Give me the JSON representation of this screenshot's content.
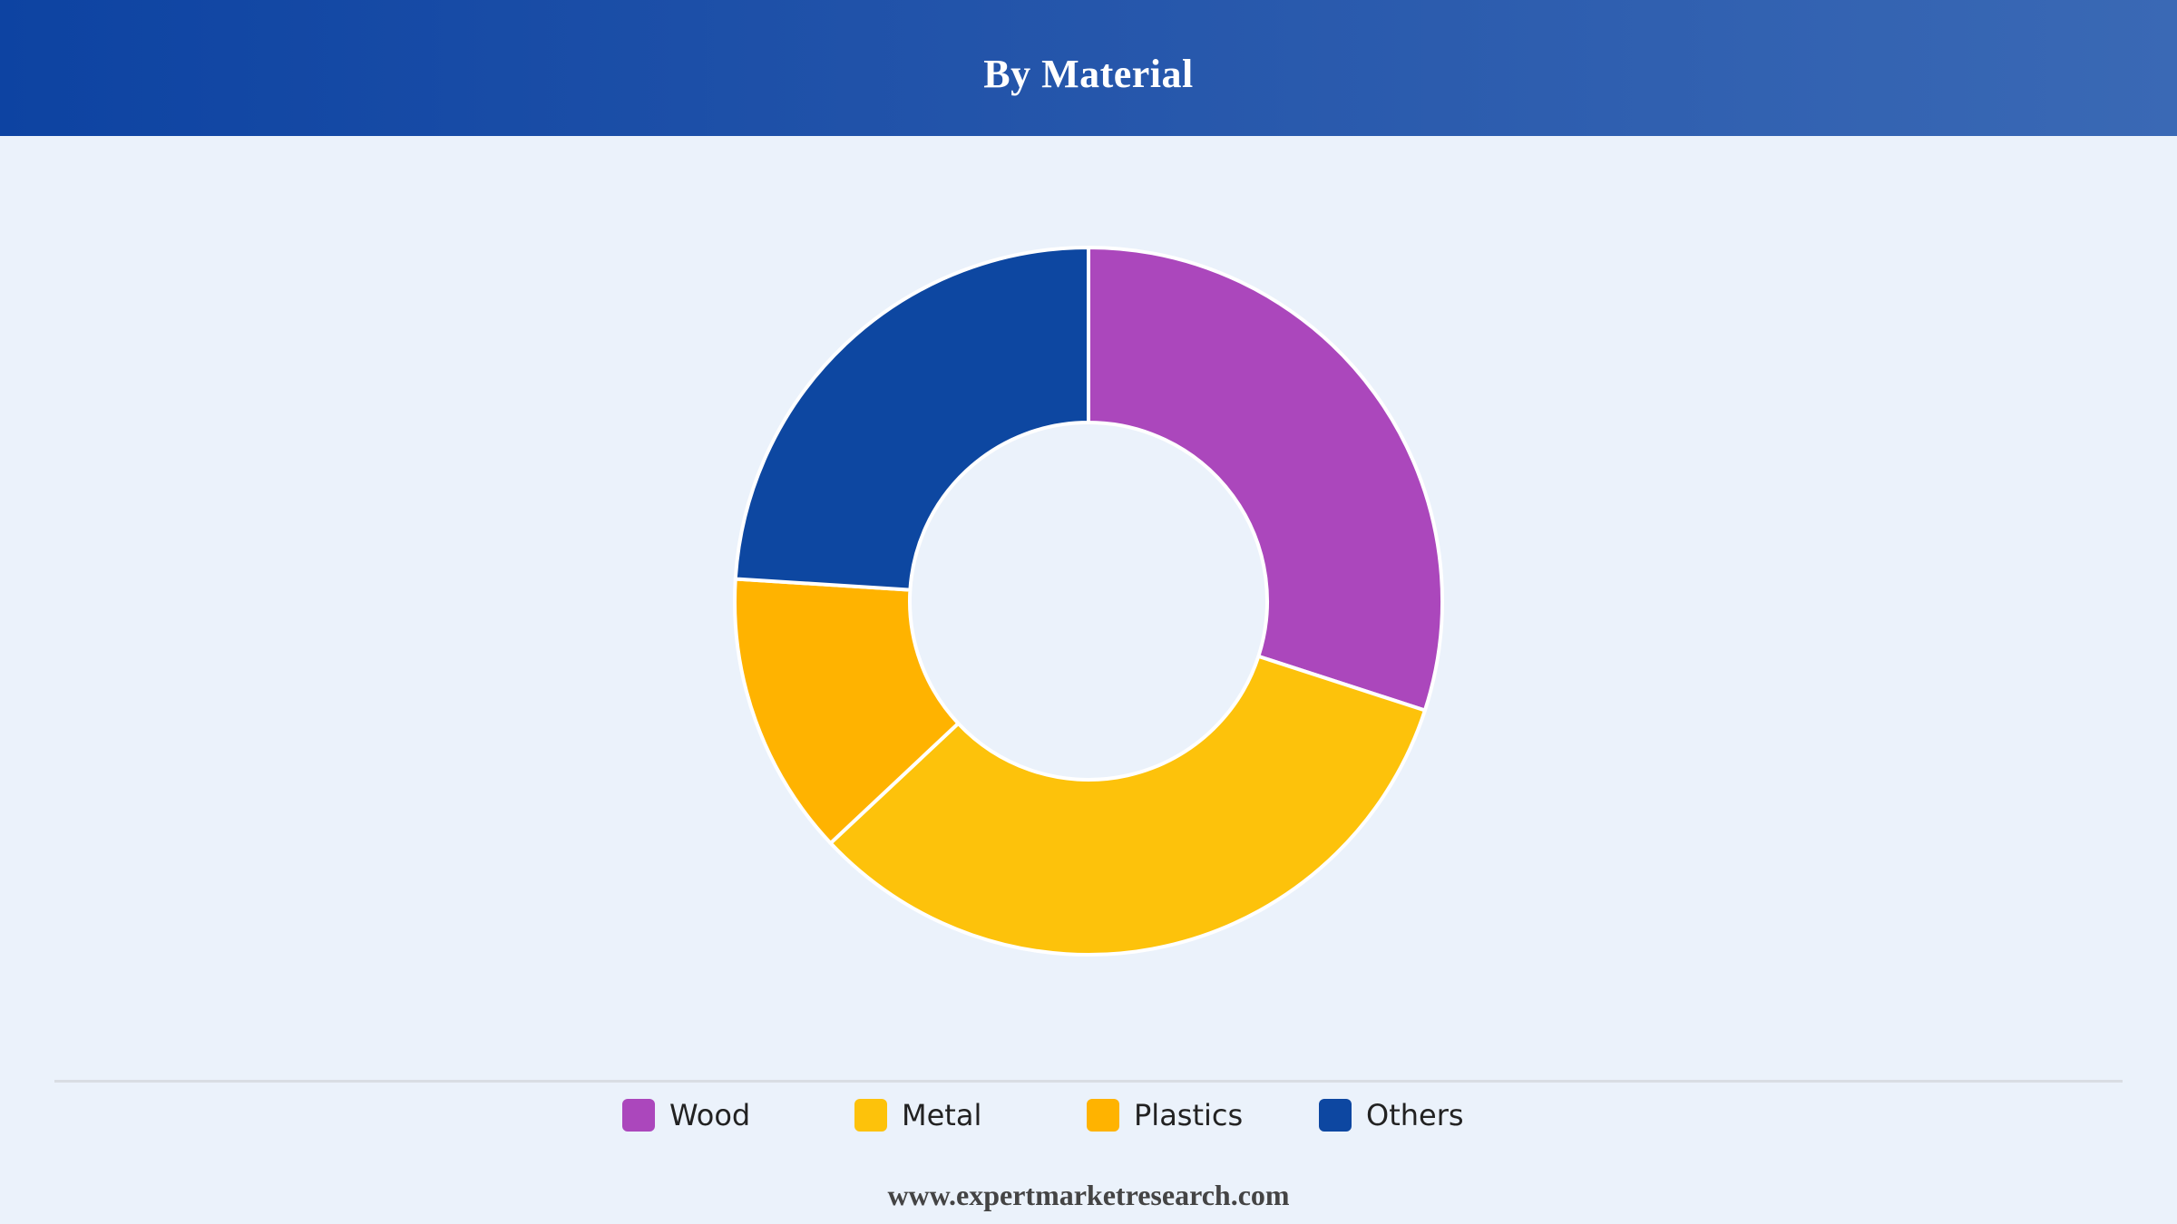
{
  "title": "By Material",
  "footer": "www.expertmarketresearch.com",
  "chart_data": {
    "type": "pie",
    "variant": "donut",
    "title": "By Material",
    "categories": [
      "Wood",
      "Metal",
      "Plastics",
      "Others"
    ],
    "values": [
      30,
      33,
      13,
      24
    ],
    "unit": "%",
    "colors": [
      "#ab47bc",
      "#fdc20b",
      "#ffb300",
      "#0d47a1"
    ],
    "legend_position": "bottom",
    "start_angle_deg": 0,
    "direction": "clockwise"
  }
}
